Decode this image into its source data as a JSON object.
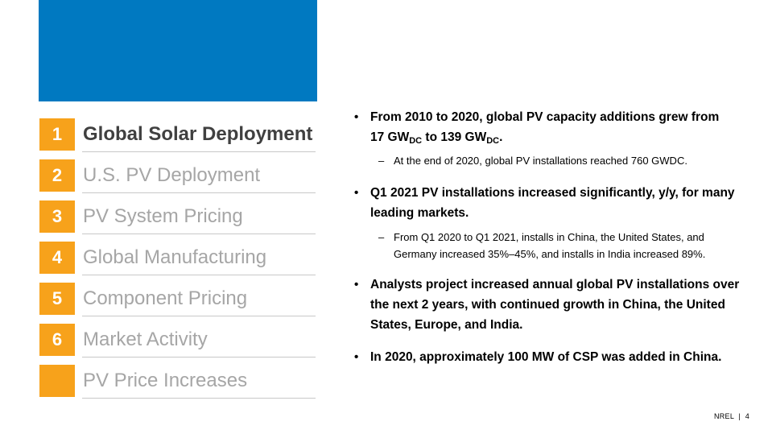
{
  "toc": {
    "items": [
      {
        "num": "1",
        "label": "Global Solar Deployment",
        "active": true
      },
      {
        "num": "2",
        "label": "U.S. PV Deployment",
        "active": false
      },
      {
        "num": "3",
        "label": "PV System Pricing",
        "active": false
      },
      {
        "num": "4",
        "label": "Global Manufacturing",
        "active": false
      },
      {
        "num": "5",
        "label": "Component Pricing",
        "active": false
      },
      {
        "num": "6",
        "label": "Market Activity",
        "active": false
      },
      {
        "num": "",
        "label": "PV Price Increases",
        "active": false
      }
    ]
  },
  "bullets": {
    "b1": {
      "line1": "From 2010 to 2020, global PV capacity additions grew from",
      "line2_a": "17 GW",
      "line2_sub_a": "DC",
      "line2_b": " to 139 GW",
      "line2_sub_b": "DC",
      "line2_c": ".",
      "sub": "At the end of 2020, global PV installations reached 760 GWDC."
    },
    "b2": {
      "text": "Q1 2021 PV installations increased significantly, y/y, for many leading markets.",
      "sub": "From Q1 2020 to Q1 2021, installs in China, the United States, and Germany increased 35%–45%, and installs in India increased 89%."
    },
    "b3": {
      "text": "Analysts project increased annual global PV installations over the next 2 years, with continued growth in China, the United States, Europe, and India."
    },
    "b4": {
      "text": "In 2020, approximately 100 MW of CSP was added in China."
    }
  },
  "footer": {
    "org": "NREL",
    "separator": "|",
    "page": "4"
  },
  "colors": {
    "blue_block": "#0079c1",
    "toc_number_bg": "#f7a21b",
    "toc_active_text": "#404040",
    "toc_inactive_text": "#a6a6a6"
  }
}
